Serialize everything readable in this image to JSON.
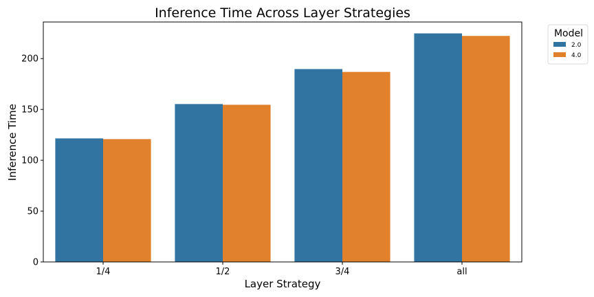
{
  "chart_data": {
    "type": "bar",
    "title": "Inference Time Across Layer Strategies",
    "xlabel": "Layer Strategy",
    "ylabel": "Inference Time",
    "categories": [
      "1/4",
      "1/2",
      "3/4",
      "all"
    ],
    "series": [
      {
        "name": "2.0",
        "color": "#3274a1",
        "values": [
          121.5,
          155.3,
          189.7,
          224.8
        ]
      },
      {
        "name": "4.0",
        "color": "#e1812c",
        "values": [
          120.8,
          154.6,
          186.9,
          222.3
        ]
      }
    ],
    "ylim": [
      0,
      236
    ],
    "yticks": [
      0,
      50,
      100,
      150,
      200
    ],
    "grid": false,
    "legend": {
      "title": "Model",
      "placement": "outside-top-right"
    }
  }
}
